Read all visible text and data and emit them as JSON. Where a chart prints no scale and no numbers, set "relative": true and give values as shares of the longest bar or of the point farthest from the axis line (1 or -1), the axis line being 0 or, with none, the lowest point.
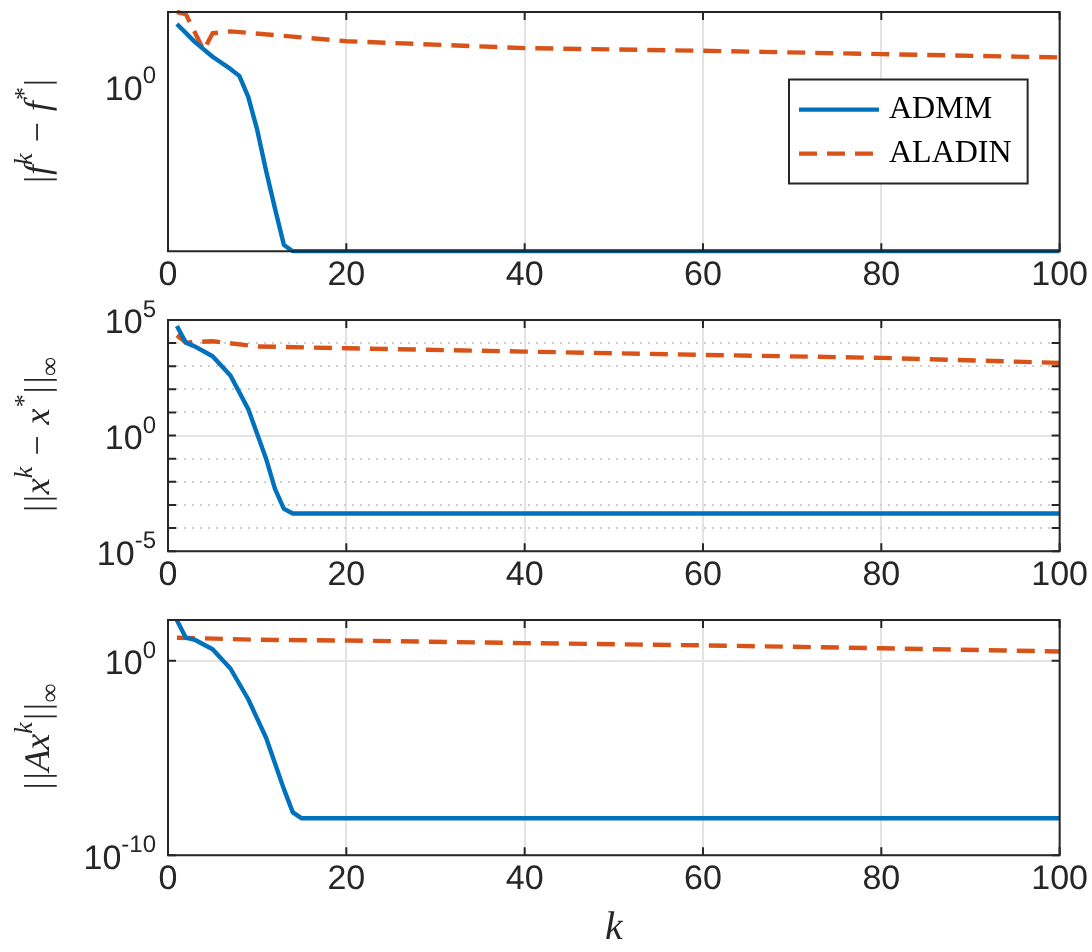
{
  "chart_data": [
    {
      "type": "line",
      "ylabel": "|f$^{k}$ − f$^{*}$|",
      "xlim": [
        0,
        100
      ],
      "xticks": [
        0,
        20,
        40,
        60,
        80,
        100
      ],
      "relative": true,
      "grid": "x",
      "legend": "right",
      "marker": "none",
      "annotations": [
        "10$^{0}$"
      ],
      "series": [
        {
          "name": "ADMM",
          "color": "#0072bd",
          "line_style": "solid",
          "x": [
            1,
            3,
            5,
            7,
            8,
            9,
            10,
            11,
            12,
            13,
            14,
            100
          ],
          "values": [
            0.95,
            0.875,
            0.813,
            0.762,
            0.733,
            0.645,
            0.508,
            0.336,
            0.178,
            0.026,
            0,
            0
          ]
        },
        {
          "name": "ALADIN",
          "color": "#d95319",
          "line_style": "dashed",
          "x": [
            1,
            2,
            4,
            5,
            7,
            20,
            40,
            60,
            80,
            100
          ],
          "values": [
            1,
            0.991,
            0.84,
            0.911,
            0.919,
            0.878,
            0.849,
            0.838,
            0.824,
            0.81
          ]
        }
      ]
    },
    {
      "type": "line",
      "ylabel": "||x$^{k}$ − x$^{*}$||$_{∞}$",
      "xlim": [
        0,
        100
      ],
      "xticks": [
        0,
        20,
        40,
        60,
        80,
        100
      ],
      "ylim": [
        1e-05,
        100000.0
      ],
      "log": true,
      "grid": true,
      "marker": "none",
      "yticks": [
        {
          "value": 1e-05,
          "label": "10$^{-5}$"
        },
        {
          "value": 0.0001,
          "label": null
        },
        {
          "value": 0.001,
          "label": null
        },
        {
          "value": 0.01,
          "label": null
        },
        {
          "value": 0.1,
          "label": null
        },
        {
          "value": 1,
          "label": "10$^{0}$"
        },
        {
          "value": 10,
          "label": null
        },
        {
          "value": 100,
          "label": null
        },
        {
          "value": 1000,
          "label": null
        },
        {
          "value": 10000,
          "label": null
        },
        {
          "value": 100000,
          "label": "10$^{5}$"
        }
      ],
      "series": [
        {
          "color": "#0072bd",
          "line_style": "solid",
          "x": [
            1,
            2,
            3,
            5,
            7,
            9,
            11,
            12,
            13,
            14,
            100
          ],
          "values": [
            55000,
            10500,
            7200,
            2700,
            400,
            14,
            0.1,
            0.005,
            0.00068,
            0.00043,
            0.00043
          ]
        },
        {
          "color": "#d95319",
          "line_style": "dashed",
          "x": [
            1,
            2,
            5,
            10,
            20,
            40,
            60,
            80,
            100
          ],
          "values": [
            22000,
            10500,
            12000,
            7200,
            6000,
            4300,
            3100,
            2300,
            1400
          ]
        }
      ]
    },
    {
      "type": "line",
      "ylabel": "||Ax$^{k}$||$_{∞}$",
      "xlabel": "k",
      "xlim": [
        0,
        100
      ],
      "xticks": [
        0,
        20,
        40,
        60,
        80,
        100
      ],
      "ylim": [
        1e-10,
        125
      ],
      "log": true,
      "grid": true,
      "marker": "none",
      "yticks": [
        {
          "value": 1e-10,
          "label": "10$^{-10}$"
        },
        {
          "value": 1,
          "label": "10$^{0}$"
        }
      ],
      "series": [
        {
          "color": "#0072bd",
          "line_style": "solid",
          "x": [
            1,
            2,
            3,
            5,
            7,
            9,
            11,
            13,
            14,
            15,
            100
          ],
          "values": [
            120,
            15.4,
            12,
            3.9,
            0.4,
            0.0105,
            0.00011,
            2.5e-07,
            1.6e-08,
            7.9e-09,
            7.9e-09
          ]
        },
        {
          "color": "#d95319",
          "line_style": "dashed",
          "x": [
            1,
            10,
            20,
            40,
            60,
            80,
            100
          ],
          "values": [
            15.4,
            12,
            11,
            8.1,
            6.2,
            4.4,
            3.0
          ]
        }
      ]
    }
  ]
}
